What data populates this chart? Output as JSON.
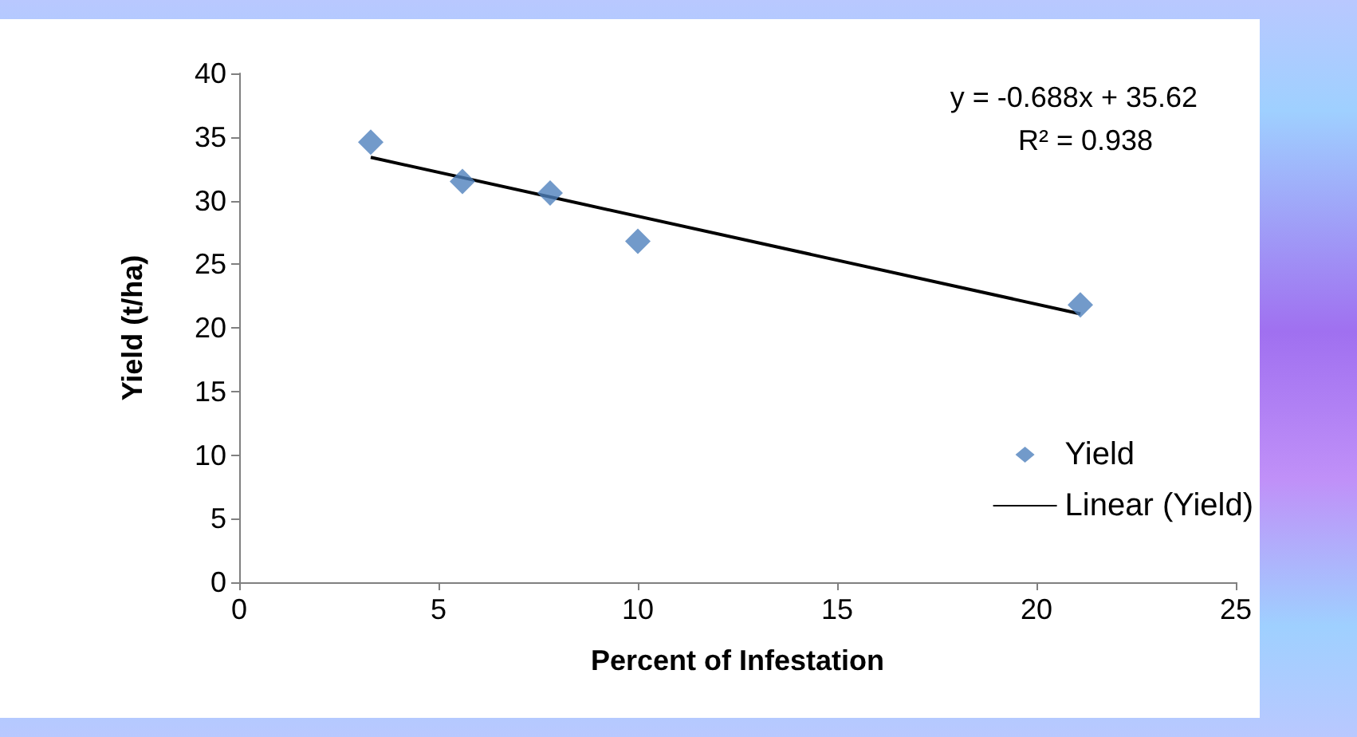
{
  "chart_data": {
    "type": "scatter",
    "xlabel": "Percent of Infestation",
    "ylabel": "Yield (t/ha)",
    "xlim": [
      0,
      25
    ],
    "xticks": [
      0,
      5,
      10,
      15,
      20,
      25
    ],
    "ylim": [
      0,
      40
    ],
    "yticks": [
      0,
      5,
      10,
      15,
      20,
      25,
      30,
      35,
      40
    ],
    "grid": false,
    "legend": "right",
    "annotations": [
      "y = -0.688x + 35.62",
      "R² = 0.938"
    ],
    "series": [
      {
        "name": "Yield",
        "marker": "diamond",
        "color": "#4f81bd",
        "x": [
          3.3,
          5.6,
          7.8,
          10,
          21.1
        ],
        "values": [
          34.6,
          31.5,
          30.6,
          26.8,
          21.8
        ]
      },
      {
        "name": "Linear (Yield)",
        "type": "line",
        "marker": "none",
        "line_style": "solid",
        "color": "#000000",
        "x": [
          3.3,
          21.1
        ],
        "values": [
          33.4,
          21.1
        ]
      }
    ]
  }
}
